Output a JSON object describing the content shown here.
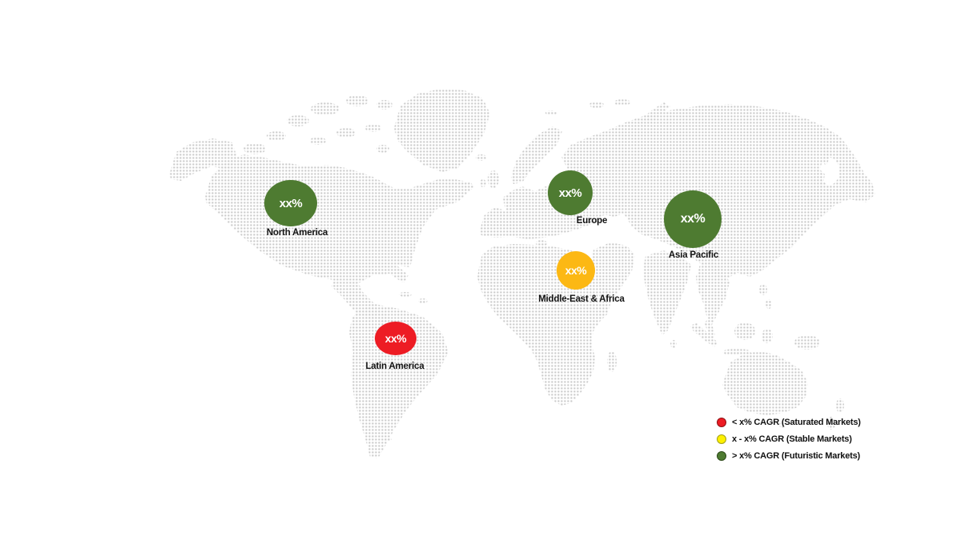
{
  "page": {
    "background": "#ffffff"
  },
  "map": {
    "dot_color": "#c9c9c9",
    "regions": [
      {
        "id": "north-america",
        "label": "North America",
        "value": "xx%",
        "color": "#4e7b31",
        "category": "futuristic"
      },
      {
        "id": "latin-america",
        "label": "Latin America",
        "value": "xx%",
        "color": "#ed1c24",
        "category": "saturated"
      },
      {
        "id": "europe",
        "label": "Europe",
        "value": "xx%",
        "color": "#4e7b31",
        "category": "futuristic"
      },
      {
        "id": "middle-east-africa",
        "label": "Middle-East & Africa",
        "value": "xx%",
        "color": "#fcb814",
        "category": "stable"
      },
      {
        "id": "asia-pacific",
        "label": "Asia Pacific",
        "value": "xx%",
        "color": "#4e7b31",
        "category": "futuristic"
      }
    ]
  },
  "legend": {
    "items": [
      {
        "label": "< x% CAGR (Saturated Markets)",
        "color": "#ed1c24",
        "border": "#8f1013"
      },
      {
        "label": "x - x% CAGR (Stable Markets)",
        "color": "#fdf000",
        "border": "#a3a018"
      },
      {
        "label": "> x% CAGR (Futuristic Markets)",
        "color": "#4e7b31",
        "border": "#2d4a1a"
      }
    ]
  }
}
